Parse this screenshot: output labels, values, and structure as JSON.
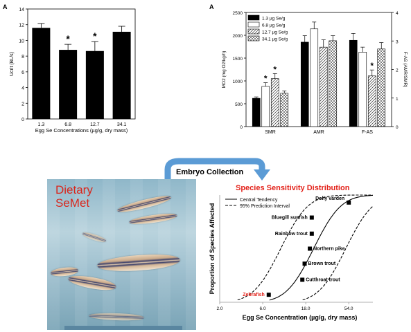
{
  "chart_data": [
    {
      "type": "bar",
      "panel_label": "A",
      "categories": [
        "1.3",
        "6.8",
        "12.7",
        "34.1"
      ],
      "values": [
        11.6,
        8.8,
        8.65,
        11.1
      ],
      "errors": [
        0.55,
        0.7,
        1.2,
        0.7
      ],
      "significant": [
        false,
        true,
        true,
        false
      ],
      "significance_marker": "*",
      "xlabel": "Egg Se Concentrations (µg/g, dry mass)",
      "ylabel": "Ucrit (BL/s)",
      "ylim": [
        0,
        14
      ],
      "yticks": [
        "0",
        "2",
        "4",
        "6",
        "8",
        "10",
        "12",
        "14"
      ],
      "color": "#000000"
    },
    {
      "type": "bar",
      "panel_label": "A",
      "categories": [
        "SMR",
        "AMR",
        "F-AS"
      ],
      "series": [
        {
          "name": "1.3 µg Se/g",
          "pattern": "solid",
          "values": [
            620,
            1850,
            1890
          ],
          "errors": [
            30,
            140,
            150
          ]
        },
        {
          "name": "6.8 µg Se/g",
          "pattern": "open",
          "values": [
            880,
            2140,
            1630
          ],
          "errors": [
            80,
            150,
            110
          ]
        },
        {
          "name": "12.7 µg Se/g",
          "pattern": "diagonal",
          "values": [
            1050,
            1740,
            1110
          ],
          "errors": [
            110,
            160,
            130
          ]
        },
        {
          "name": "34.1 µg Se/g",
          "pattern": "cross",
          "values": [
            730,
            1880,
            1700
          ],
          "errors": [
            50,
            110,
            140
          ]
        }
      ],
      "significant": [
        [
          false,
          true,
          true,
          false
        ],
        [
          false,
          false,
          false,
          false
        ],
        [
          false,
          false,
          true,
          false
        ]
      ],
      "significance_marker": "*",
      "ylabel": "MO2 (mg O2/kg/h)",
      "ylabel_right": "F-AS (AMR/SMR)",
      "ylim": [
        0,
        2500
      ],
      "yticks": [
        "0",
        "500",
        "1000",
        "1500",
        "2000",
        "2500"
      ],
      "ylim_right": [
        0,
        4
      ],
      "yticks_right": [
        "0",
        "1",
        "2",
        "3",
        "4"
      ]
    },
    {
      "type": "scatter",
      "title": "Species Sensitivity Distribution",
      "xlabel": "Egg Se Concentration (µg/g, dry mass)",
      "ylabel": "Proportion of Species Affected",
      "xscale": "log",
      "xlim": [
        2.0,
        100
      ],
      "xticks": [
        "2.0",
        "6.0",
        "18.0",
        "54.0"
      ],
      "ylim": [
        0,
        1
      ],
      "yticks": [
        "0",
        "0.1",
        "0.2",
        "0.3",
        "0.4",
        "0.5",
        "0.6",
        "0.7",
        "0.8",
        "0.9",
        "1"
      ],
      "legend": [
        "Central Tendency",
        "95% Prediction Interval"
      ],
      "legend_position": "top-left",
      "points": [
        {
          "label": "Zebrafish",
          "x": 7.0,
          "y": 0.07,
          "highlight": true
        },
        {
          "label": "Cutthroat trout",
          "x": 16.5,
          "y": 0.21
        },
        {
          "label": "Brown trout",
          "x": 17.5,
          "y": 0.36
        },
        {
          "label": "Northern pike",
          "x": 20.0,
          "y": 0.5
        },
        {
          "label": "Rainbow trout",
          "x": 21.0,
          "y": 0.64
        },
        {
          "label": "Bluegill sunfish",
          "x": 21.0,
          "y": 0.79
        },
        {
          "label": "Dolly varden",
          "x": 54.0,
          "y": 0.93
        }
      ]
    }
  ],
  "middle": {
    "arrow_label": "Embryo Collection",
    "photo_title_line1": "Dietary",
    "photo_title_line2": "SeMet"
  },
  "colors": {
    "arrow": "#5b9bd5",
    "ssd_title": "#e3231b",
    "zebrafish_label": "#e3231b",
    "photo_title": "#d9261c"
  }
}
